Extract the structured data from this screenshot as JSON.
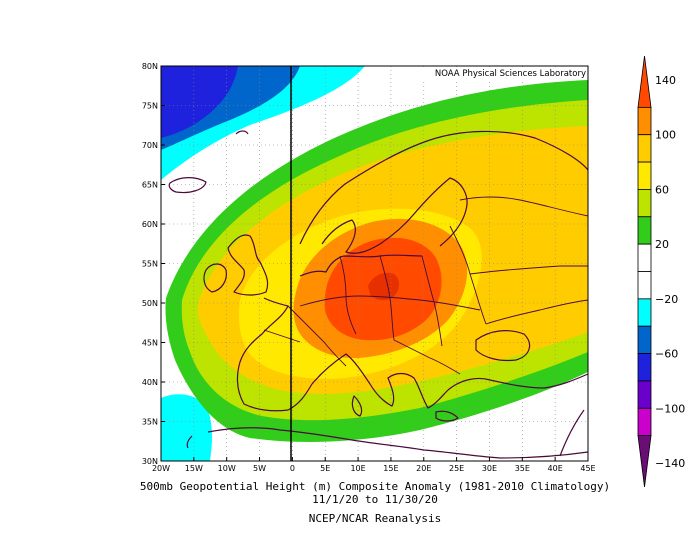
{
  "map": {
    "credit": "NOAA Physical Sciences Laboratory",
    "lon_labels": [
      "20W",
      "15W",
      "10W",
      "5W",
      "0",
      "5E",
      "10E",
      "15E",
      "20E",
      "25E",
      "30E",
      "35E",
      "40E",
      "45E"
    ],
    "lat_labels": [
      "80N",
      "75N",
      "70N",
      "65N",
      "60N",
      "55N",
      "50N",
      "45N",
      "40N",
      "35N",
      "30N"
    ],
    "lon_range": [
      -20,
      45
    ],
    "lat_range": [
      30,
      80
    ]
  },
  "colorbar": {
    "labels": [
      "140",
      "100",
      "60",
      "20",
      "−20",
      "−60",
      "−100",
      "−140"
    ],
    "levels": [
      140,
      120,
      100,
      80,
      60,
      40,
      20,
      0,
      -20,
      -40,
      -60,
      -80,
      -100,
      -120,
      -140
    ],
    "colors": [
      "#ff4a00",
      "#ff8f00",
      "#ffcc00",
      "#ffe900",
      "#bde300",
      "#32cc1a",
      "#ffffff",
      "#ffffff",
      "#00ffff",
      "#0066cc",
      "#1e22dd",
      "#6a00cc",
      "#cc00cc",
      "#6a0d77"
    ]
  },
  "caption": {
    "line1": "500mb Geopotential Height (m) Composite Anomaly (1981-2010 Climatology)",
    "line2": "11/1/20 to 11/30/20",
    "line3": "NCEP/NCAR Reanalysis"
  }
}
